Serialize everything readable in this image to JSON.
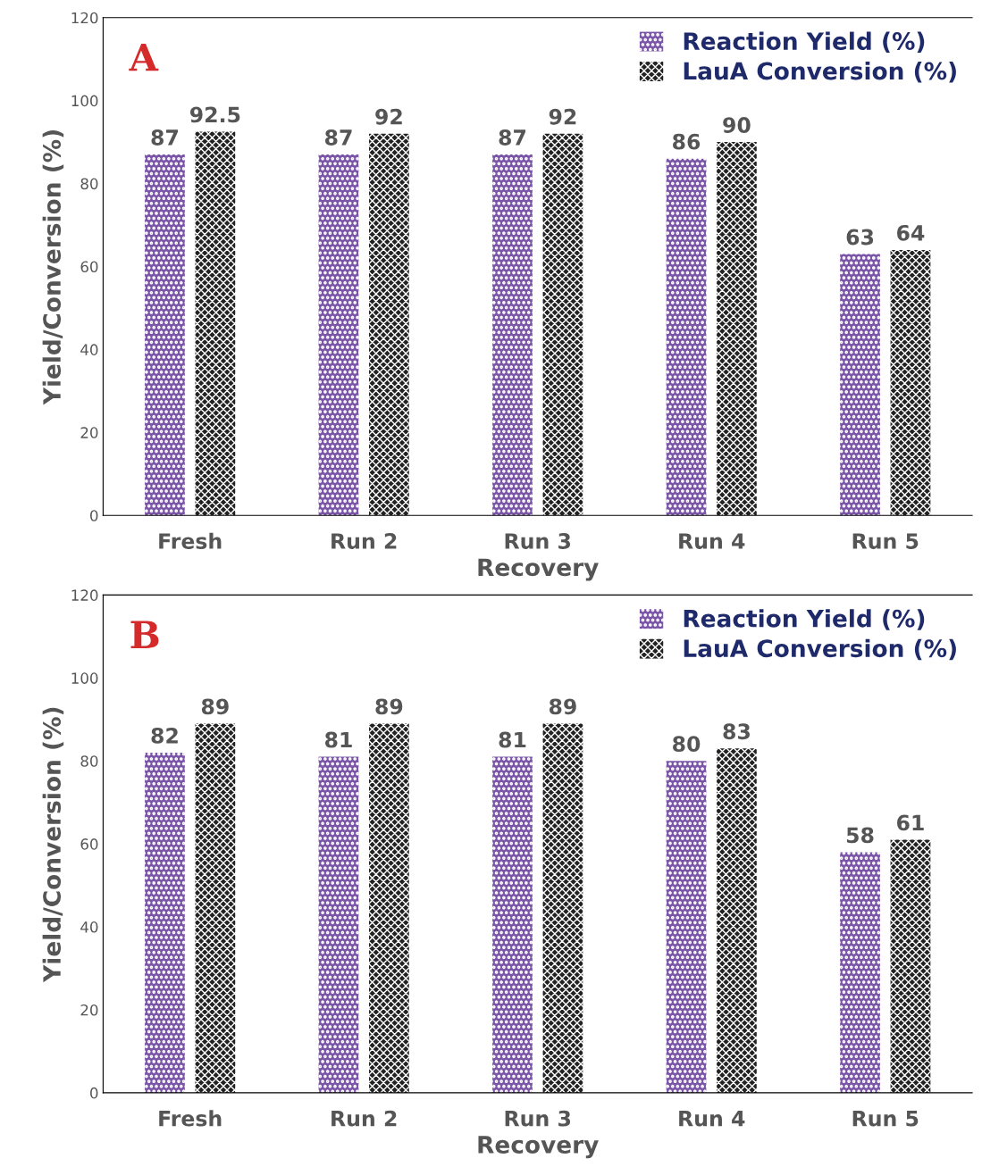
{
  "chart_data": [
    {
      "type": "bar",
      "title": "A",
      "xlabel": "Recovery",
      "ylabel": "Yield/Conversion (%)",
      "categories": [
        "Fresh",
        "Run 2",
        "Run 3",
        "Run 4",
        "Run 5"
      ],
      "series": [
        {
          "name": "Reaction Yield (%)",
          "color": "#7b55a8",
          "values": [
            87,
            87,
            87,
            86,
            63
          ]
        },
        {
          "name": "LauA Conversion (%)",
          "color": "#222222",
          "values": [
            92.5,
            92,
            92,
            90,
            64
          ]
        }
      ],
      "ylim": [
        0,
        120
      ],
      "yticks": [
        0,
        20,
        40,
        60,
        80,
        100,
        120
      ],
      "data_labels": true,
      "legend": "top right",
      "grid": false
    },
    {
      "type": "bar",
      "title": "B",
      "xlabel": "Recovery",
      "ylabel": "Yield/Conversion (%)",
      "categories": [
        "Fresh",
        "Run 2",
        "Run 3",
        "Run 4",
        "Run 5"
      ],
      "series": [
        {
          "name": "Reaction Yield (%)",
          "color": "#7b55a8",
          "values": [
            82,
            81,
            81,
            80,
            58
          ]
        },
        {
          "name": "LauA Conversion (%)",
          "color": "#222222",
          "values": [
            89,
            89,
            89,
            83,
            61
          ]
        }
      ],
      "ylim": [
        0,
        120
      ],
      "yticks": [
        0,
        20,
        40,
        60,
        80,
        100,
        120
      ],
      "data_labels": true,
      "legend": "top right",
      "grid": false
    }
  ]
}
